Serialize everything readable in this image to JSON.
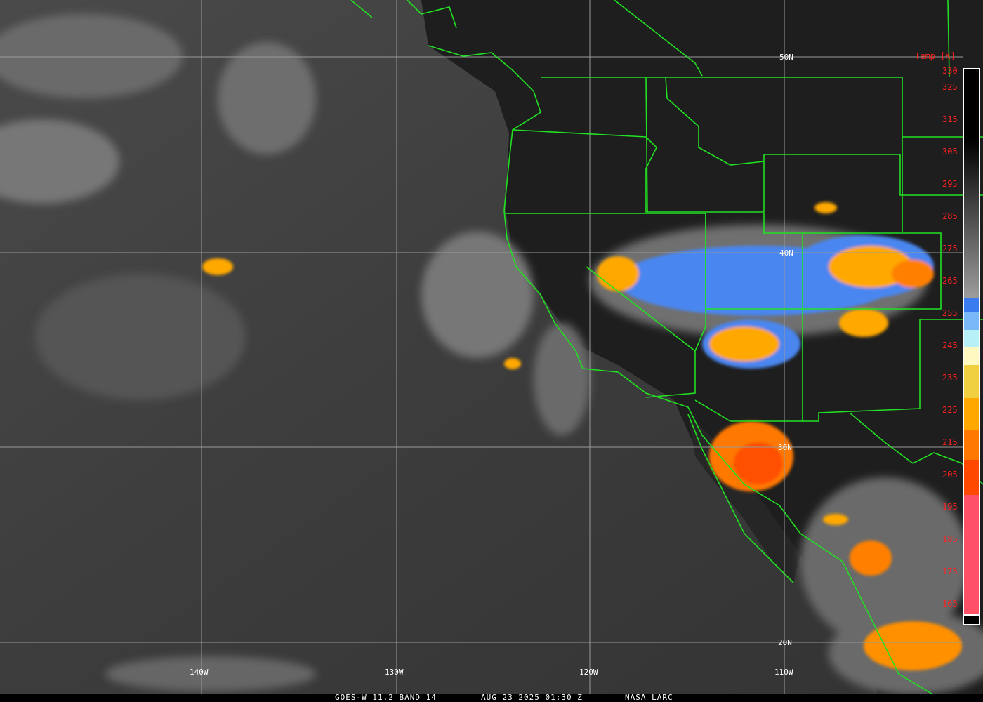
{
  "map": {
    "source": "GOES-W",
    "longitude_labels": [
      "140W",
      "130W",
      "120W",
      "110W"
    ],
    "latitude_labels": [
      "50N",
      "40N",
      "30N",
      "20N"
    ],
    "colors": {
      "border": "#22e022",
      "grid": "#9a9a9a"
    }
  },
  "colorbar": {
    "title": "Temp [K]",
    "ticks": [
      "330",
      "325",
      "315",
      "305",
      "295",
      "285",
      "275",
      "265",
      "255",
      "245",
      "235",
      "225",
      "215",
      "205",
      "195",
      "185",
      "175",
      "165"
    ],
    "segments": [
      "#000000",
      "#808080",
      "#3a7cf0",
      "#7ab8f8",
      "#b8f0f8",
      "#fff8c0",
      "#f0d040",
      "#ffa800",
      "#ff7800",
      "#ff4800",
      "#ff5068",
      "#000000"
    ]
  },
  "caption": {
    "product": "GOES-W 11.2 BAND 14",
    "datetime": "AUG 23 2025 01:30 Z",
    "credit": "NASA LARC"
  }
}
